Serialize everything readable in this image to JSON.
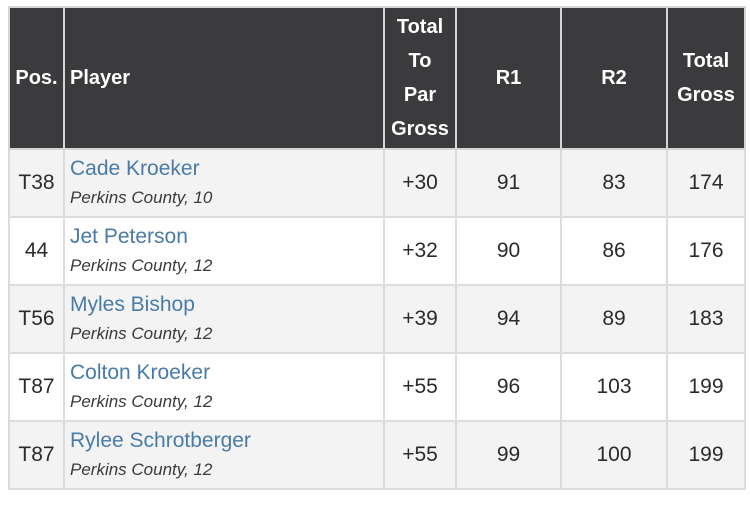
{
  "headers": {
    "pos": "Pos.",
    "player": "Player",
    "to_par_lines": [
      "Total",
      "To",
      "Par",
      "Gross"
    ],
    "r1": "R1",
    "r2": "R2",
    "total_lines": [
      "Total",
      "Gross"
    ]
  },
  "rows": [
    {
      "pos": "T38",
      "name": "Cade Kroeker",
      "meta": "Perkins County, 10",
      "to_par": "+30",
      "r1": "91",
      "r2": "83",
      "total": "174"
    },
    {
      "pos": "44",
      "name": "Jet Peterson",
      "meta": "Perkins County, 12",
      "to_par": "+32",
      "r1": "90",
      "r2": "86",
      "total": "176"
    },
    {
      "pos": "T56",
      "name": "Myles Bishop",
      "meta": "Perkins County, 12",
      "to_par": "+39",
      "r1": "94",
      "r2": "89",
      "total": "183"
    },
    {
      "pos": "T87",
      "name": "Colton Kroeker",
      "meta": "Perkins County, 12",
      "to_par": "+55",
      "r1": "96",
      "r2": "103",
      "total": "199"
    },
    {
      "pos": "T87",
      "name": "Rylee Schrotberger",
      "meta": "Perkins County, 12",
      "to_par": "+55",
      "r1": "99",
      "r2": "100",
      "total": "199"
    }
  ],
  "colors": {
    "header_bg": "#3b3b3d",
    "link": "#4a7ba6",
    "alt_row": "#f3f3f3"
  }
}
